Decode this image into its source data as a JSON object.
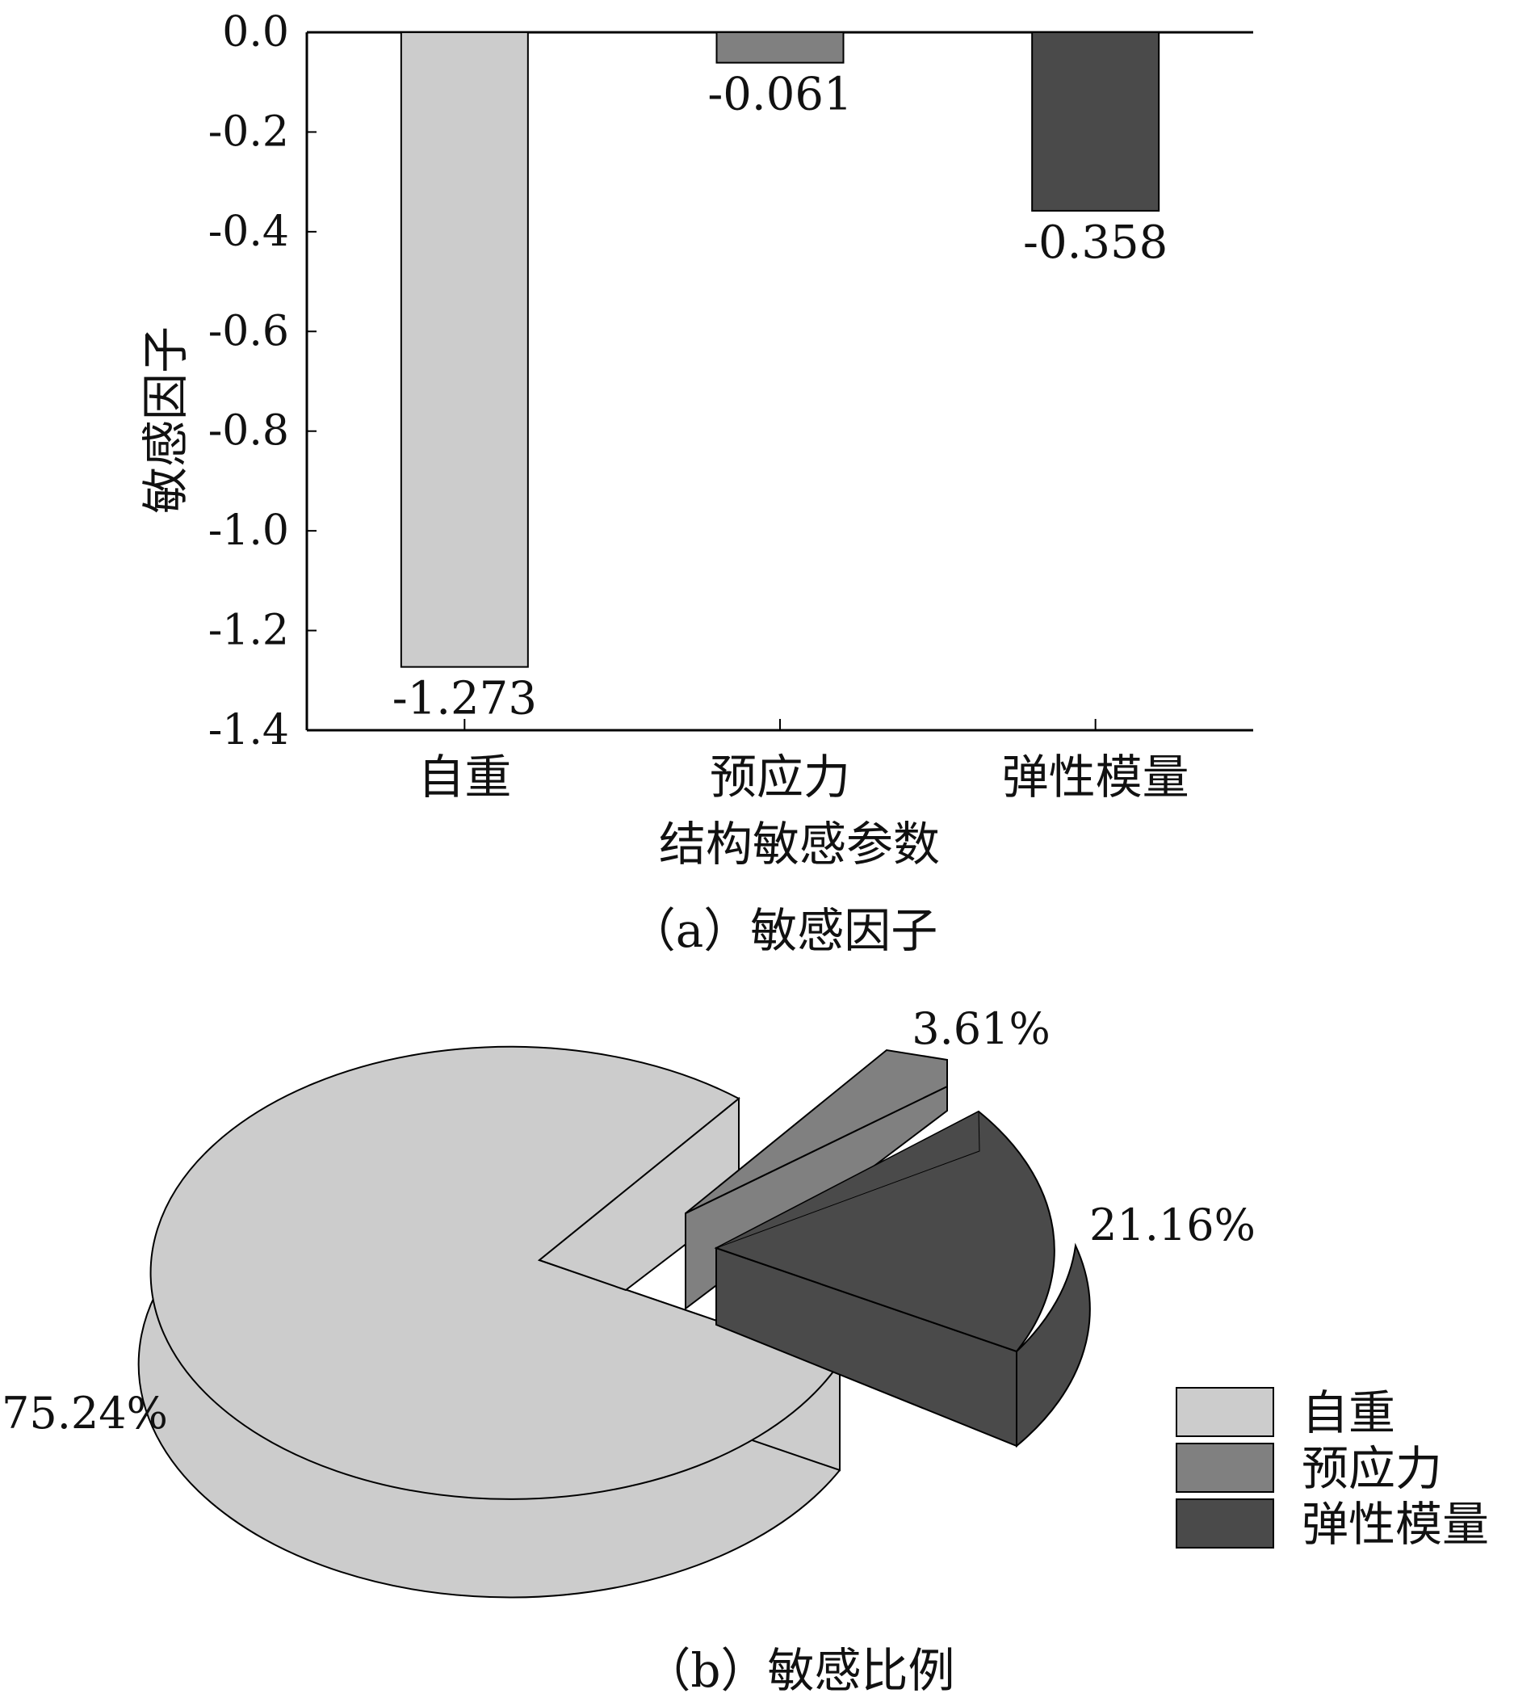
{
  "chart_data": [
    {
      "type": "bar",
      "caption": "（a）敏感因子",
      "xlabel": "结构敏感参数",
      "ylabel": "敏感因子",
      "categories": [
        "自重",
        "预应力",
        "弹性模量"
      ],
      "values": [
        -1.273,
        -0.061,
        -0.358
      ],
      "value_labels": [
        "-1.273",
        "-0.061",
        "-0.358"
      ],
      "ylim": [
        -1.4,
        0.0
      ],
      "yticks": [
        "0.0",
        "-0.2",
        "-0.4",
        "-0.6",
        "-0.8",
        "-1.0",
        "-1.2",
        "-1.4"
      ],
      "colors": [
        "#cccccc",
        "#808080",
        "#4a4a4a"
      ],
      "grid": false
    },
    {
      "type": "pie",
      "caption": "（b）敏感比例",
      "labels": [
        "自重",
        "预应力",
        "弹性模量"
      ],
      "values": [
        75.24,
        3.61,
        21.16
      ],
      "value_labels": [
        "75.24%",
        "3.61%",
        "21.16%"
      ],
      "colors": [
        "#cccccc",
        "#808080",
        "#4a4a4a"
      ],
      "style": "3d-exploded",
      "legend_position": "right"
    }
  ]
}
